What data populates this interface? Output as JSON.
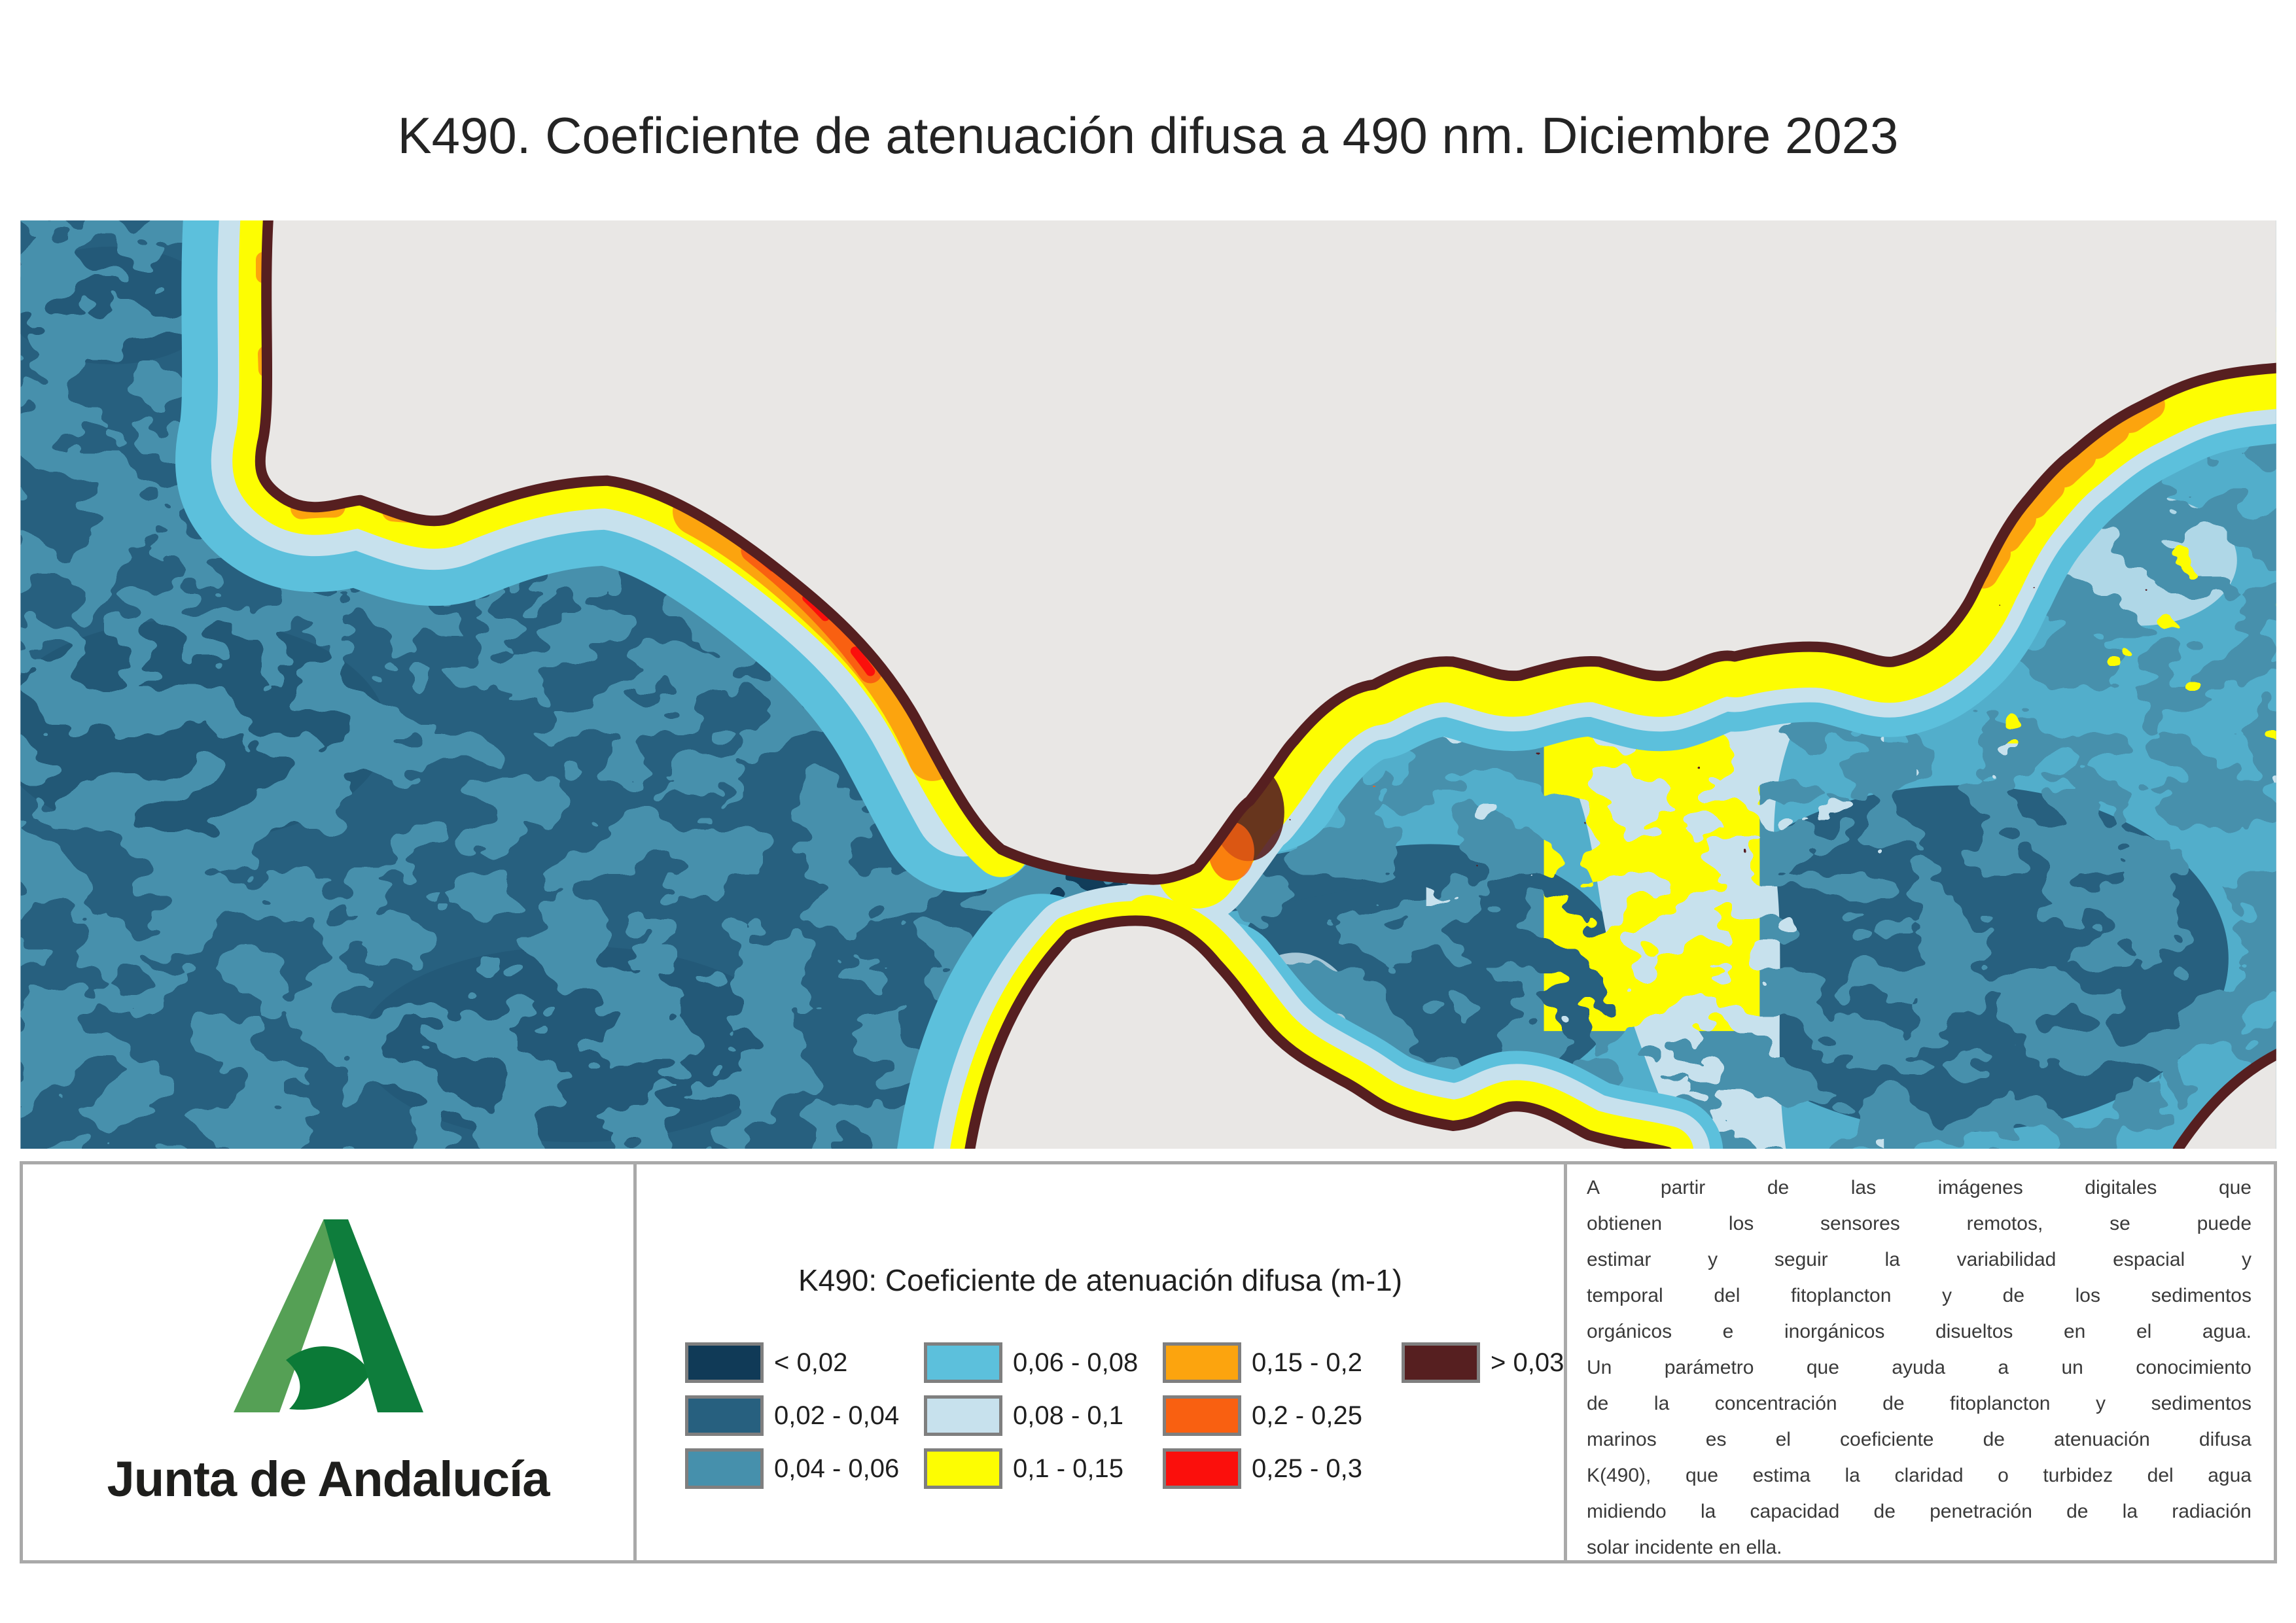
{
  "title": "K490. Coeficiente de atenuación difusa a 490 nm. Diciembre 2023",
  "legend": {
    "title": "K490: Coeficiente de atenuación difusa (m-1)",
    "columns": [
      [
        {
          "label": "< 0,02",
          "color": "#103a57"
        },
        {
          "label": "0,02 - 0,04",
          "color": "#27607f"
        },
        {
          "label": "0,04 - 0,06",
          "color": "#4690ac"
        }
      ],
      [
        {
          "label": "0,06 - 0,08",
          "color": "#5cc0dc"
        },
        {
          "label": "0,08 - 0,1",
          "color": "#c7e1ed"
        },
        {
          "label": "0,1 - 0,15",
          "color": "#fdfd02"
        }
      ],
      [
        {
          "label": "0,15 - 0,2",
          "color": "#fca40e"
        },
        {
          "label": "0,2 - 0,25",
          "color": "#f96011"
        },
        {
          "label": "0,25 - 0,3",
          "color": "#fb0f0c"
        }
      ],
      [
        {
          "label": "> 0,03",
          "color": "#561f20"
        }
      ]
    ]
  },
  "logo": {
    "name": "Junta de Andalucía"
  },
  "info_lines": [
    "A partir de las imágenes digitales que",
    "obtienen los sensores remotos, se puede",
    "estimar y seguir la variabilidad espacial y",
    "temporal del fitoplancton y de los sedimentos",
    "orgánicos e inorgánicos disueltos en el agua.",
    "Un parámetro que ayuda a un conocimiento",
    "de la concentración de fitoplancton y sedimentos",
    "marinos es el coeficiente de atenuación difusa",
    "K(490), que estima la claridad o turbidez del agua",
    "midiendo la capacidad de penetración de la radiación",
    "solar incidente en ella."
  ],
  "palette": {
    "land": "#e9e7e5",
    "atlantic": "#27607f",
    "alboran": "#52aecb",
    "teal": "#4690ac",
    "sky": "#5cc0dc",
    "pale": "#c7e1ed",
    "yellow": "#fdfd02",
    "orange": "#fca40e",
    "orange_deep": "#f96011",
    "red": "#fb0f0c",
    "maroon": "#561f20",
    "navy": "#103a57",
    "deep": "#1e4f6e",
    "panel_border": "#a9a9a9",
    "swatch_border": "#7f7f7f"
  }
}
